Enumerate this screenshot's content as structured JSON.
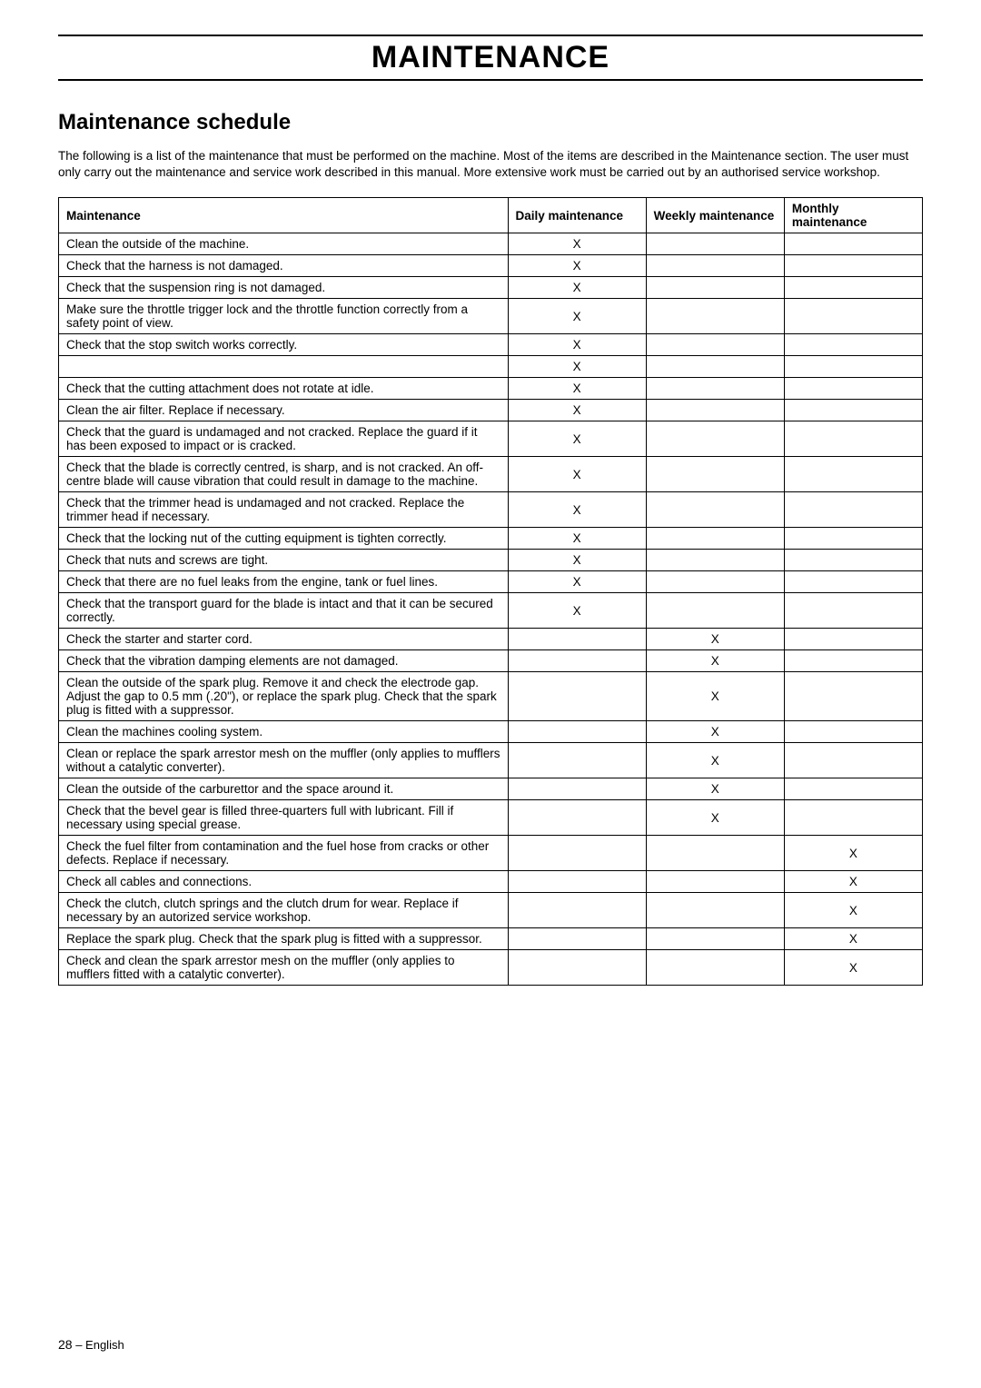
{
  "page": {
    "main_title": "MAINTENANCE",
    "section_title": "Maintenance schedule",
    "intro": "The following is a list of the maintenance that must be performed on the machine. Most of the items are described in the Maintenance section. The user must only carry out the maintenance and service work described in this manual. More extensive work must be carried out by an authorised service workshop.",
    "footer_page": "28",
    "footer_sep": " – ",
    "footer_lang": "English"
  },
  "table": {
    "headers": {
      "task": "Maintenance",
      "daily": "Daily maintenance",
      "weekly": "Weekly maintenance",
      "monthly": "Monthly maintenance"
    },
    "rows": [
      {
        "task": "Clean the outside of the machine.",
        "daily": "X",
        "weekly": "",
        "monthly": ""
      },
      {
        "task": "Check that the harness is not damaged.",
        "daily": "X",
        "weekly": "",
        "monthly": ""
      },
      {
        "task": "Check that the suspension ring is not damaged.",
        "daily": "X",
        "weekly": "",
        "monthly": ""
      },
      {
        "task": "Make sure the throttle trigger lock and the throttle function correctly from a safety point of view.",
        "daily": "X",
        "weekly": "",
        "monthly": ""
      },
      {
        "task": "Check that the stop switch works correctly.",
        "daily": "X",
        "weekly": "",
        "monthly": ""
      },
      {
        "task": "",
        "daily": "X",
        "weekly": "",
        "monthly": ""
      },
      {
        "task": "Check that the cutting attachment does not rotate at idle.",
        "daily": "X",
        "weekly": "",
        "monthly": ""
      },
      {
        "task": "Clean the air filter. Replace if necessary.",
        "daily": "X",
        "weekly": "",
        "monthly": ""
      },
      {
        "task": "Check that the guard is undamaged and not cracked. Replace the guard if it has been exposed to impact or is cracked.",
        "daily": "X",
        "weekly": "",
        "monthly": ""
      },
      {
        "task": "Check that the blade is correctly centred, is sharp, and is not cracked. An off-centre blade will cause vibration that could result in damage to the machine.",
        "daily": "X",
        "weekly": "",
        "monthly": ""
      },
      {
        "task": "Check that the trimmer head is undamaged and not cracked. Replace the trimmer head if necessary.",
        "daily": "X",
        "weekly": "",
        "monthly": ""
      },
      {
        "task": "Check that the locking nut of the cutting equipment is tighten correctly.",
        "daily": "X",
        "weekly": "",
        "monthly": ""
      },
      {
        "task": "Check that nuts and screws are tight.",
        "daily": "X",
        "weekly": "",
        "monthly": ""
      },
      {
        "task": "Check that there are no fuel leaks from the engine, tank or fuel lines.",
        "daily": "X",
        "weekly": "",
        "monthly": ""
      },
      {
        "task": "Check that the transport guard for the blade is intact and that it can be secured correctly.",
        "daily": "X",
        "weekly": "",
        "monthly": ""
      },
      {
        "task": "Check the starter and starter cord.",
        "daily": "",
        "weekly": "X",
        "monthly": ""
      },
      {
        "task": "Check that the vibration damping elements are not damaged.",
        "daily": "",
        "weekly": "X",
        "monthly": ""
      },
      {
        "task": "Clean the outside of the spark plug. Remove it and check the electrode gap. Adjust the gap to 0.5 mm (.20\"), or replace the spark plug. Check that the spark plug is fitted with a suppressor.",
        "daily": "",
        "weekly": "X",
        "monthly": ""
      },
      {
        "task": "Clean the machines cooling system.",
        "daily": "",
        "weekly": "X",
        "monthly": ""
      },
      {
        "task": "Clean or replace the spark arrestor mesh on the muffler (only applies to mufflers without a catalytic converter).",
        "daily": "",
        "weekly": "X",
        "monthly": ""
      },
      {
        "task": "Clean the outside of the carburettor and the space around it.",
        "daily": "",
        "weekly": "X",
        "monthly": ""
      },
      {
        "task": "Check that the bevel gear is filled three-quarters full with lubricant. Fill if necessary using special grease.",
        "daily": "",
        "weekly": "X",
        "monthly": ""
      },
      {
        "task": "Check the fuel filter from contamination and the fuel hose from cracks or other defects. Replace if necessary.",
        "daily": "",
        "weekly": "",
        "monthly": "X"
      },
      {
        "task": "Check all cables and connections.",
        "daily": "",
        "weekly": "",
        "monthly": "X"
      },
      {
        "task": "Check the clutch, clutch springs and the clutch drum for wear. Replace if necessary by an autorized service workshop.",
        "daily": "",
        "weekly": "",
        "monthly": "X"
      },
      {
        "task": "Replace the spark plug. Check that the spark plug is fitted with a suppressor.",
        "daily": "",
        "weekly": "",
        "monthly": "X"
      },
      {
        "task": "Check and clean the spark arrestor mesh on the muffler (only applies to mufflers fitted with a catalytic converter).",
        "daily": "",
        "weekly": "",
        "monthly": "X"
      }
    ]
  }
}
